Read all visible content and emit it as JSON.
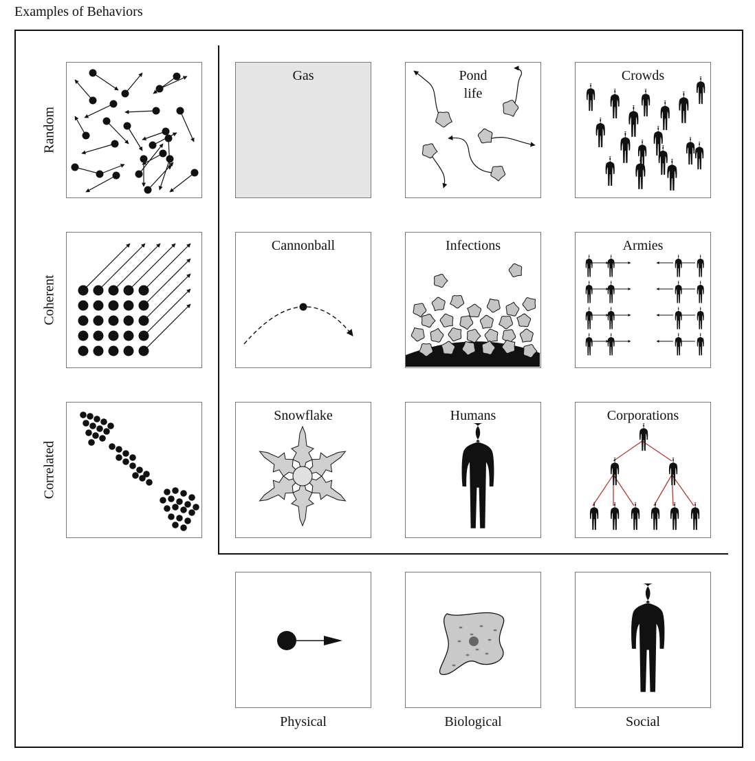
{
  "title": "Examples of Behaviors",
  "row_labels": [
    "Random",
    "Coherent",
    "Correlated"
  ],
  "column_labels": [
    "Physical",
    "Biological",
    "Social"
  ],
  "cells": {
    "gas": "Gas",
    "pond_life": "Pond\nlife",
    "crowds": "Crowds",
    "cannonball": "Cannonball",
    "infections": "Infections",
    "armies": "Armies",
    "snowflake": "Snowflake",
    "humans": "Humans",
    "corporations": "Corporations"
  },
  "colors": {
    "line": "#111111",
    "gas_fill": "#e5e5e5",
    "amoeba_fill": "#c8c8c8",
    "org_lines": "#b03a2e",
    "panel_border": "#777777"
  }
}
